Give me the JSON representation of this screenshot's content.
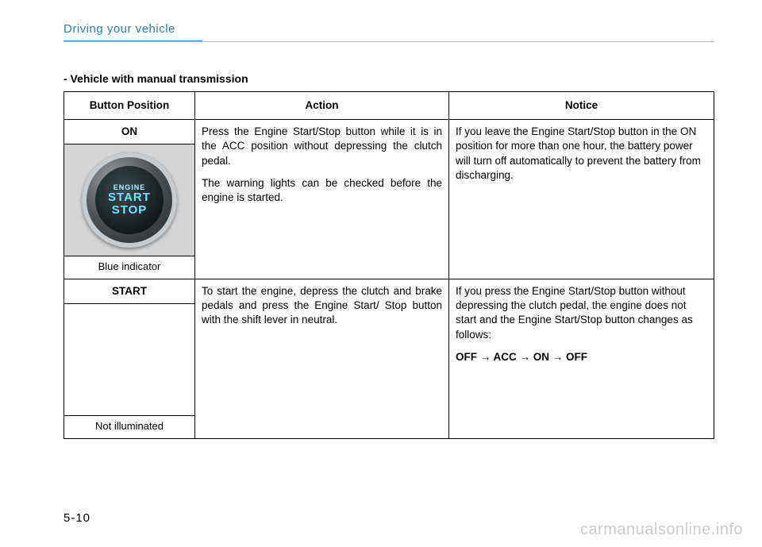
{
  "header": {
    "section_title": "Driving your vehicle"
  },
  "subheading": "- Vehicle with manual transmission",
  "table": {
    "columns": {
      "position": "Button Position",
      "action": "Action",
      "notice": "Notice"
    },
    "rows": [
      {
        "position_label": "ON",
        "position_footer": "Blue indicator",
        "has_button_image": true,
        "button_text": {
          "line1": "ENGINE",
          "line2": "START",
          "line3": "STOP"
        },
        "action_paragraphs": [
          "Press the Engine Start/Stop button while it is in the ACC position without depressing the clutch pedal.",
          "The warning lights can be checked before the engine is started."
        ],
        "notice_paragraphs": [
          "If you leave the Engine Start/Stop button in the ON position for more than one hour, the battery power will turn off automatically to prevent the battery from discharging."
        ],
        "notice_sequence": null
      },
      {
        "position_label": "START",
        "position_footer": "Not illuminated",
        "has_button_image": false,
        "action_paragraphs": [
          "To start the engine, depress the clutch and brake pedals and press the Engine Start/ Stop button with the shift lever in neutral."
        ],
        "notice_paragraphs": [
          "If you press the Engine Start/Stop button without depressing the clutch pedal, the engine does not start and the Engine Start/Stop button changes as follows:"
        ],
        "notice_sequence": "OFF → ACC → ON → OFF"
      }
    ]
  },
  "page_number": "5-10",
  "watermark": "carmanualsonline.info",
  "colors": {
    "accent": "#2b7fb5",
    "watermark": "#cccccc",
    "button_glow": "#6fe3ff"
  }
}
